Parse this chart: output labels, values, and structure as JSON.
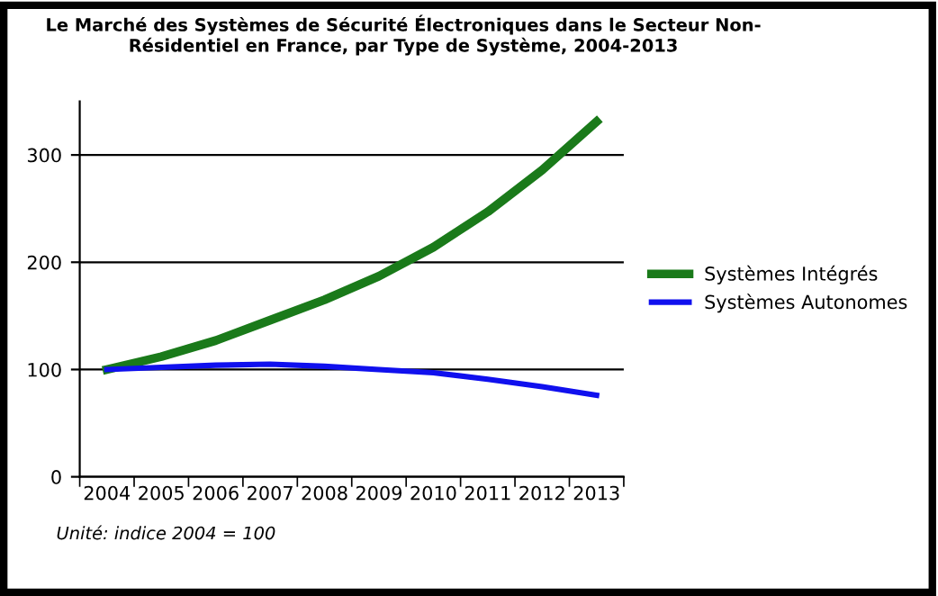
{
  "chart_data": {
    "type": "line",
    "title": "Le Marché des Systèmes de Sécurité Électroniques dans le Secteur Non-\nRésidentiel en France, par Type de Système, 2004-2013",
    "categories": [
      "2004",
      "2005",
      "2006",
      "2007",
      "2008",
      "2009",
      "2010",
      "2011",
      "2012",
      "2013"
    ],
    "series": [
      {
        "name": "Systèmes Intégrés",
        "color": "#1a7a1a",
        "values": [
          100,
          112,
          127,
          146,
          165,
          187,
          214,
          247,
          286,
          331
        ]
      },
      {
        "name": "Systèmes Autonomes",
        "color": "#1010ee",
        "values": [
          100,
          102,
          104,
          105,
          103,
          100,
          97,
          91,
          84,
          76
        ]
      }
    ],
    "ylim": [
      0,
      350
    ],
    "yticks": [
      0,
      100,
      200,
      300
    ],
    "grid": "y",
    "legend": "right",
    "marker": "none",
    "line_style": "solid",
    "annotations": [
      "Unité: indice 2004 = 100"
    ]
  }
}
